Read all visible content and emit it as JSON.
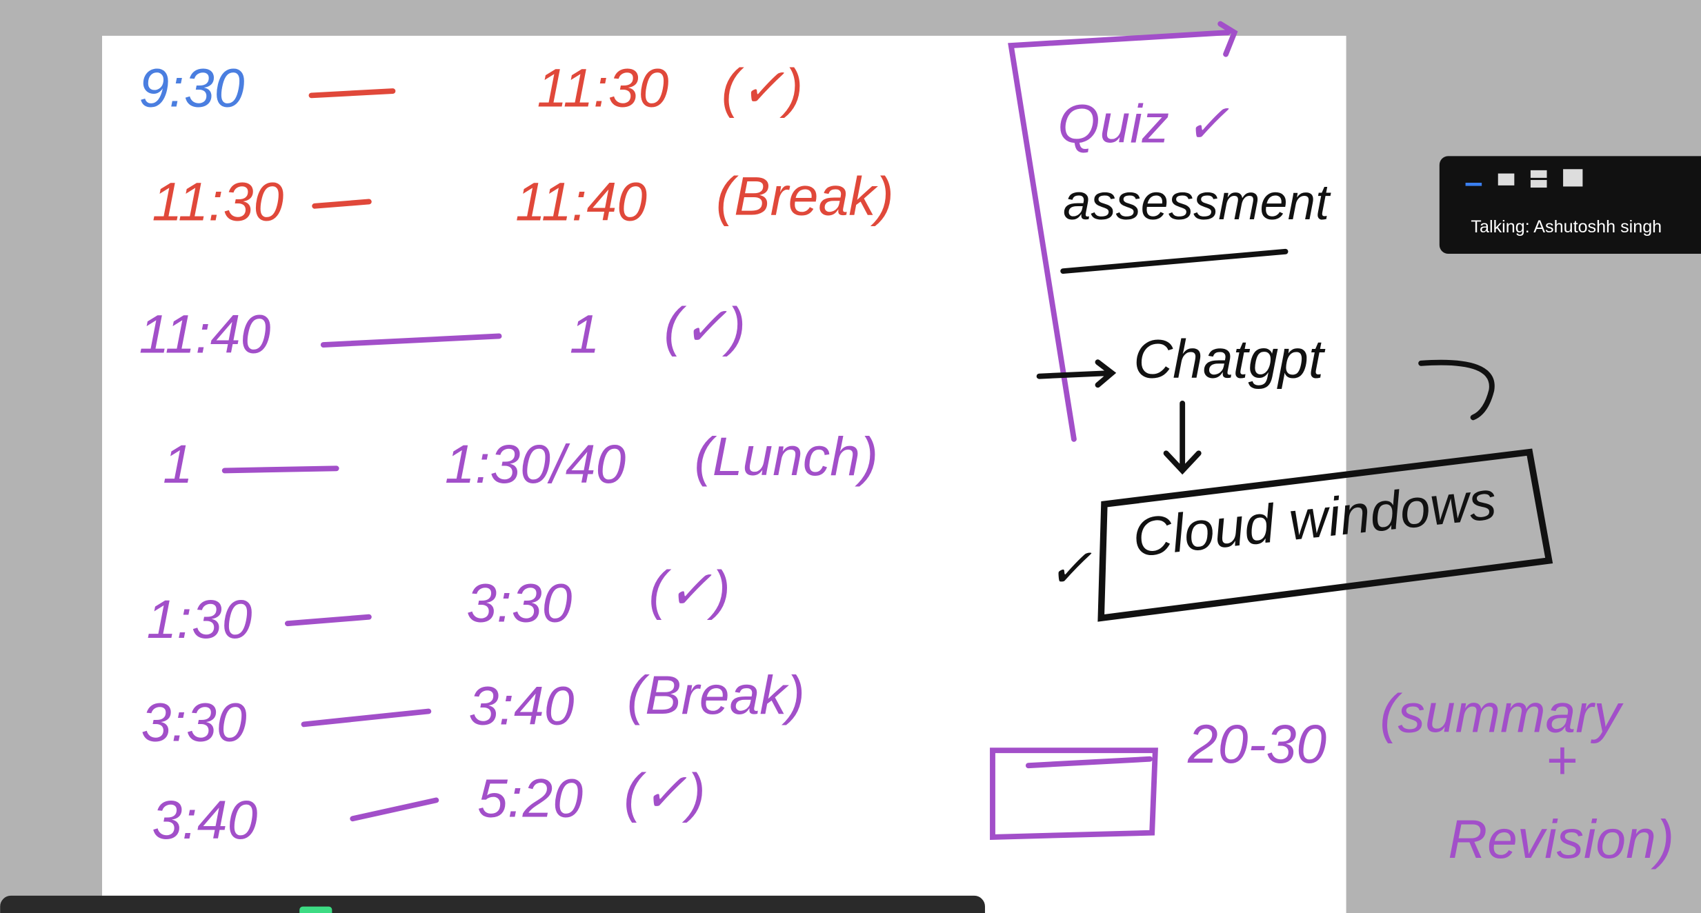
{
  "schedule": [
    {
      "start": "9:30",
      "end": "11:30",
      "note": "(✓)"
    },
    {
      "start": "11:30",
      "end": "11:40",
      "note": "(Break)"
    },
    {
      "start": "11:40",
      "end": "1",
      "note": "(✓)"
    },
    {
      "start": "1",
      "end": "1:30/40",
      "note": "(Lunch)"
    },
    {
      "start": "1:30",
      "end": "3:30",
      "note": "(✓)"
    },
    {
      "start": "3:30",
      "end": "3:40",
      "note": "(Break)"
    },
    {
      "start": "3:40",
      "end": "5:20",
      "note": "(✓)"
    }
  ],
  "notes": {
    "quiz": "Quiz ✓",
    "assessment": "assessment",
    "chatgpt": "Chatgpt",
    "cloud": "Cloud windows",
    "check": "✓",
    "duration": "20-30",
    "summary": "(summary",
    "plus": "+",
    "revision": "Revision)"
  },
  "speaker": "Talking: Ashutoshh singh"
}
